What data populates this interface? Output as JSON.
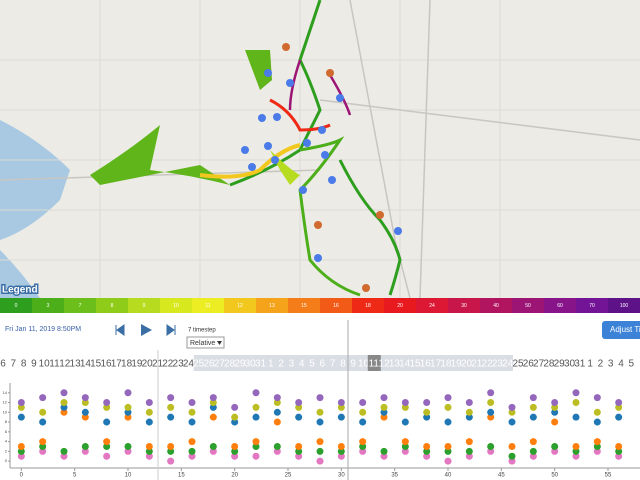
{
  "legend": {
    "title": "Legend",
    "labels": [
      "0",
      "3",
      "7",
      "8",
      "9",
      "10",
      "11",
      "12",
      "13",
      "15",
      "16",
      "18",
      "20",
      "24",
      "30",
      "40",
      "50",
      "60",
      "70",
      "100"
    ],
    "colors": [
      "#2e9e1e",
      "#4caf1a",
      "#6cbf1a",
      "#8fcc1a",
      "#b7dc1f",
      "#d8e81f",
      "#eded23",
      "#f2c81e",
      "#f5a31b",
      "#f47d1a",
      "#f25a17",
      "#ee2a16",
      "#e8191f",
      "#dc1834",
      "#c8164a",
      "#b21560",
      "#9c1575",
      "#88148a",
      "#731396",
      "#5e1288"
    ]
  },
  "controls": {
    "datetime": "Fri Jan 11, 2019 8:50PM",
    "timestep_label": "7 timestep",
    "mode": "Relative",
    "adjust_button": "Adjust Ti"
  },
  "timeline": {
    "days": [
      "6",
      "7",
      "8",
      "9",
      "10",
      "11",
      "12",
      "13",
      "14",
      "15",
      "16",
      "17",
      "18",
      "19",
      "20",
      "21",
      "22",
      "23",
      "24",
      "25",
      "26",
      "27",
      "28",
      "29",
      "30",
      "31",
      "1",
      "2",
      "3",
      "4",
      "5",
      "6",
      "7",
      "8",
      "9",
      "10",
      "11",
      "12",
      "13",
      "14",
      "15",
      "16",
      "17",
      "18",
      "19",
      "20",
      "21",
      "22",
      "23",
      "24",
      "25",
      "26",
      "27",
      "28",
      "29",
      "30",
      "31",
      "1",
      "2",
      "3",
      "4",
      "5"
    ],
    "current": "11"
  },
  "strip_chart": {
    "xlim": [
      -2,
      58
    ],
    "ylim": [
      -1,
      16
    ],
    "xticks": [
      0,
      5,
      10,
      15,
      20,
      25,
      30,
      35,
      40,
      45,
      50,
      55
    ],
    "yticks": [
      0,
      2,
      4,
      6,
      8,
      10,
      12,
      14
    ],
    "colors": [
      "#e377c2",
      "#2ca02c",
      "#ff7f0e",
      "#1f77b4",
      "#bcbd22",
      "#9467bd"
    ],
    "columns": [
      {
        "x": 0,
        "values": [
          1,
          2,
          3,
          9,
          11,
          12
        ]
      },
      {
        "x": 2,
        "values": [
          2,
          3,
          4,
          8,
          10,
          13
        ]
      },
      {
        "x": 4,
        "values": [
          1,
          2,
          10,
          11,
          12,
          14
        ]
      },
      {
        "x": 6,
        "values": [
          2,
          3,
          9,
          10,
          12,
          13
        ]
      },
      {
        "x": 8,
        "values": [
          1,
          3,
          4,
          8,
          11,
          12
        ]
      },
      {
        "x": 10,
        "values": [
          2,
          3,
          9,
          10,
          11,
          14
        ]
      },
      {
        "x": 12,
        "values": [
          1,
          2,
          3,
          8,
          10,
          12
        ]
      },
      {
        "x": 14,
        "values": [
          0,
          2,
          3,
          9,
          11,
          13
        ]
      },
      {
        "x": 16,
        "values": [
          1,
          2,
          4,
          8,
          10,
          12
        ]
      },
      {
        "x": 18,
        "values": [
          2,
          3,
          9,
          11,
          12,
          13
        ]
      },
      {
        "x": 20,
        "values": [
          1,
          2,
          3,
          8,
          9,
          11
        ]
      },
      {
        "x": 22,
        "values": [
          1,
          3,
          4,
          9,
          11,
          14
        ]
      },
      {
        "x": 24,
        "values": [
          2,
          3,
          8,
          10,
          12,
          13
        ]
      },
      {
        "x": 26,
        "values": [
          1,
          2,
          3,
          9,
          11,
          12
        ]
      },
      {
        "x": 28,
        "values": [
          0,
          2,
          4,
          8,
          10,
          13
        ]
      },
      {
        "x": 30,
        "values": [
          1,
          2,
          3,
          9,
          11,
          12
        ]
      },
      {
        "x": 32,
        "values": [
          2,
          3,
          4,
          8,
          10,
          12
        ]
      },
      {
        "x": 34,
        "values": [
          1,
          2,
          9,
          10,
          11,
          13
        ]
      },
      {
        "x": 36,
        "values": [
          2,
          3,
          4,
          8,
          11,
          12
        ]
      },
      {
        "x": 38,
        "values": [
          1,
          2,
          3,
          9,
          10,
          12
        ]
      },
      {
        "x": 40,
        "values": [
          0,
          2,
          3,
          8,
          11,
          13
        ]
      },
      {
        "x": 42,
        "values": [
          1,
          2,
          4,
          9,
          10,
          12
        ]
      },
      {
        "x": 44,
        "values": [
          2,
          3,
          9,
          10,
          12,
          14
        ]
      },
      {
        "x": 46,
        "values": [
          0,
          1,
          3,
          8,
          10,
          11
        ]
      },
      {
        "x": 48,
        "values": [
          1,
          2,
          4,
          9,
          11,
          13
        ]
      },
      {
        "x": 50,
        "values": [
          2,
          3,
          8,
          10,
          11,
          12
        ]
      },
      {
        "x": 52,
        "values": [
          1,
          2,
          3,
          9,
          12,
          14
        ]
      },
      {
        "x": 54,
        "values": [
          2,
          3,
          4,
          8,
          10,
          13
        ]
      },
      {
        "x": 56,
        "values": [
          1,
          2,
          3,
          9,
          11,
          12
        ]
      }
    ]
  }
}
